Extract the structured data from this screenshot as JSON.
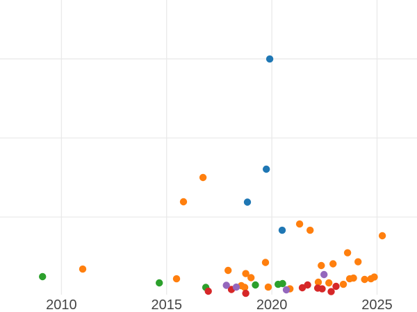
{
  "chart_data": {
    "type": "scatter",
    "title": "",
    "xlabel": "",
    "ylabel": "",
    "background": "#ffffff",
    "grid_color": "#e9e9e9",
    "tick_label_color": "#444444",
    "marker_radius": 5.2,
    "legend": "none",
    "x_axis": {
      "range": [
        2007.08,
        2026.9
      ],
      "ticks": [
        2010,
        2015,
        2020,
        2025
      ],
      "tick_labels": [
        "2010",
        "2015",
        "2020",
        "2025"
      ]
    },
    "y_axis": {
      "range": [
        1.8,
        374.5
      ],
      "gridline_values": [
        100,
        200,
        300
      ],
      "labels_visible": false
    },
    "series": [
      {
        "name": "series-blue",
        "color": "#1f77b4",
        "points": [
          [
            2019.9,
            299.9
          ],
          [
            2019.74,
            160.5
          ],
          [
            2018.84,
            118.9
          ],
          [
            2020.49,
            83.3
          ]
        ]
      },
      {
        "name": "series-orange",
        "color": "#ff7f0e",
        "points": [
          [
            2011.01,
            34.2
          ],
          [
            2015.47,
            21.9
          ],
          [
            2015.8,
            119.3
          ],
          [
            2016.73,
            150.0
          ],
          [
            2017.92,
            32.5
          ],
          [
            2018.55,
            13.2
          ],
          [
            2018.71,
            11.0
          ],
          [
            2018.76,
            28.5
          ],
          [
            2019.01,
            23.3
          ],
          [
            2019.7,
            42.6
          ],
          [
            2019.83,
            11.4
          ],
          [
            2020.86,
            9.2
          ],
          [
            2021.32,
            91.2
          ],
          [
            2021.82,
            83.3
          ],
          [
            2022.21,
            17.6
          ],
          [
            2022.35,
            38.6
          ],
          [
            2022.71,
            16.7
          ],
          [
            2022.91,
            40.8
          ],
          [
            2023.4,
            14.9
          ],
          [
            2023.6,
            54.8
          ],
          [
            2023.7,
            21.9
          ],
          [
            2023.88,
            22.8
          ],
          [
            2024.1,
            43.4
          ],
          [
            2024.41,
            21.1
          ],
          [
            2024.71,
            21.9
          ],
          [
            2024.87,
            24.1
          ],
          [
            2025.25,
            76.3
          ]
        ]
      },
      {
        "name": "series-green",
        "color": "#2ca02c",
        "points": [
          [
            2009.1,
            24.6
          ],
          [
            2014.65,
            16.7
          ],
          [
            2016.86,
            11.0
          ],
          [
            2019.22,
            14.1
          ],
          [
            2020.3,
            14.9
          ],
          [
            2020.51,
            15.8
          ]
        ]
      },
      {
        "name": "series-red",
        "color": "#d62728",
        "points": [
          [
            2016.98,
            6.2
          ],
          [
            2018.08,
            8.4
          ],
          [
            2018.76,
            3.5
          ],
          [
            2021.45,
            10.6
          ],
          [
            2021.7,
            14.1
          ],
          [
            2022.18,
            10.1
          ],
          [
            2022.39,
            9.2
          ],
          [
            2022.82,
            5.7
          ],
          [
            2023.05,
            12.3
          ]
        ]
      },
      {
        "name": "series-purple",
        "color": "#9467bd",
        "points": [
          [
            2017.84,
            13.6
          ],
          [
            2018.31,
            11.4
          ],
          [
            2020.69,
            7.9
          ],
          [
            2022.48,
            27.2
          ]
        ]
      }
    ]
  }
}
